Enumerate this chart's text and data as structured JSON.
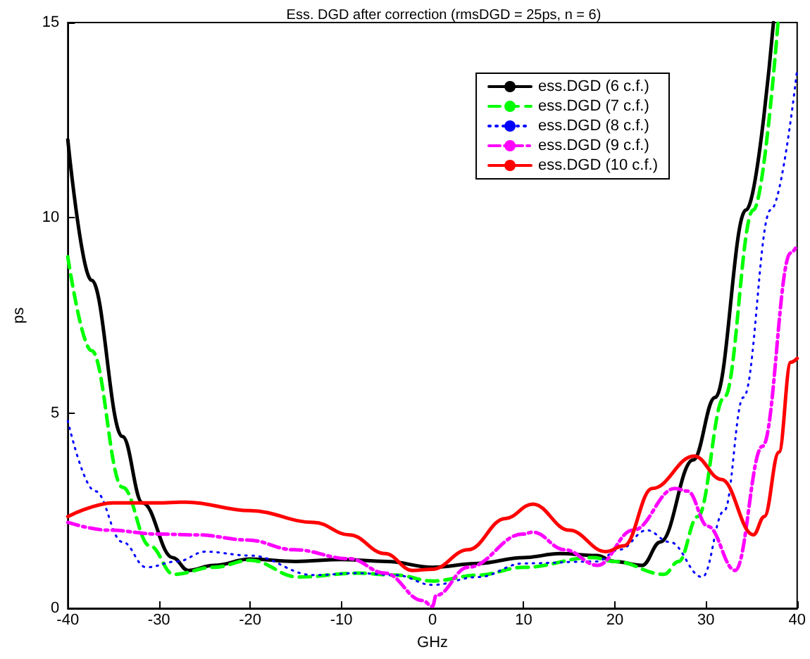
{
  "chart_data": {
    "type": "line",
    "title": "Ess. DGD after correction (rmsDGD = 25ps, n = 6)",
    "xlabel": "GHz",
    "ylabel": "ps",
    "xlim": [
      -40,
      40
    ],
    "ylim": [
      0,
      15
    ],
    "xticks": [
      -40,
      -30,
      -20,
      -10,
      0,
      10,
      20,
      30,
      40
    ],
    "yticks": [
      0,
      5,
      10,
      15
    ],
    "grid": false,
    "legend": "top right",
    "marker": "none",
    "series": [
      {
        "name": "ess.DGD (6 c.f.)",
        "color": "#000000",
        "line_style": "solid",
        "x": [
          -40,
          -37.4,
          -34,
          -31.8,
          -28.5,
          -26.8,
          -24,
          -20,
          -15,
          -10,
          -5,
          0,
          5,
          10,
          14,
          18,
          20,
          23,
          25,
          28.6,
          31,
          34.4,
          37.4
        ],
        "values": [
          12,
          8.4,
          4.4,
          2.7,
          1.3,
          0.97,
          1.1,
          1.26,
          1.2,
          1.25,
          1.2,
          1.05,
          1.15,
          1.3,
          1.4,
          1.35,
          1.2,
          1.1,
          1.7,
          3.8,
          5.4,
          10.2,
          15
        ]
      },
      {
        "name": "ess.DGD (7 c.f.)",
        "color": "#00ff00",
        "line_style": "dashed",
        "x": [
          -40,
          -37.4,
          -34,
          -31,
          -28.4,
          -24,
          -20,
          -14.7,
          -8.2,
          -4,
          0,
          5,
          10,
          17.6,
          20,
          25.4,
          27,
          29.1,
          32,
          35.2,
          37.9
        ],
        "values": [
          9,
          6.6,
          3.1,
          1.6,
          0.87,
          1.05,
          1.23,
          0.8,
          0.9,
          0.85,
          0.7,
          0.85,
          1.05,
          1.3,
          1.2,
          0.87,
          1.2,
          2.35,
          5.4,
          10.2,
          15
        ]
      },
      {
        "name": "ess.DGD (8 c.f.)",
        "color": "#0000ff",
        "line_style": "dotted",
        "x": [
          -40,
          -37,
          -34,
          -31.4,
          -28,
          -24.9,
          -20,
          -13,
          -8.2,
          -4,
          0,
          5,
          10,
          18,
          20.5,
          23.5,
          26,
          29.6,
          32,
          34.1,
          37.1,
          40
        ],
        "values": [
          4.8,
          3,
          1.7,
          1.05,
          1.2,
          1.45,
          1.35,
          0.85,
          0.9,
          0.85,
          0.6,
          0.8,
          1.15,
          1.2,
          1.5,
          2,
          1.7,
          0.8,
          2.5,
          5.4,
          10.2,
          13.8
        ]
      },
      {
        "name": "ess.DGD (9 c.f.)",
        "color": "#ff00ff",
        "line_style": "dashdot",
        "x": [
          -40,
          -35.5,
          -30,
          -25.8,
          -20.3,
          -15.2,
          -9.1,
          -5.2,
          -1.1,
          0,
          0.4,
          3.9,
          9.9,
          11,
          14.5,
          18.1,
          22,
          26.6,
          28,
          30.2,
          33.2,
          36.2,
          39.3,
          40
        ],
        "values": [
          2.2,
          2,
          1.9,
          1.88,
          1.75,
          1.5,
          1.27,
          0.9,
          0.2,
          0.05,
          0.33,
          1.05,
          1.9,
          1.95,
          1.5,
          1.1,
          2,
          3.07,
          3,
          2.1,
          0.97,
          4.15,
          9.1,
          9.3
        ]
      },
      {
        "name": "ess.DGD (10 c.f.)",
        "color": "#ff0000",
        "line_style": "solid",
        "x": [
          -40,
          -35,
          -30.3,
          -27,
          -20,
          -13,
          -9.1,
          -5.2,
          -2.2,
          0,
          3.9,
          8,
          11,
          15,
          19,
          21,
          24.1,
          28.7,
          31.7,
          35.2,
          36.4,
          38,
          39.3,
          40
        ],
        "values": [
          2.35,
          2.7,
          2.7,
          2.72,
          2.5,
          2.2,
          1.88,
          1.4,
          0.97,
          1,
          1.5,
          2.3,
          2.67,
          2,
          1.45,
          1.6,
          3.07,
          3.9,
          3.3,
          1.88,
          2.35,
          4,
          6.3,
          6.4
        ]
      }
    ]
  }
}
